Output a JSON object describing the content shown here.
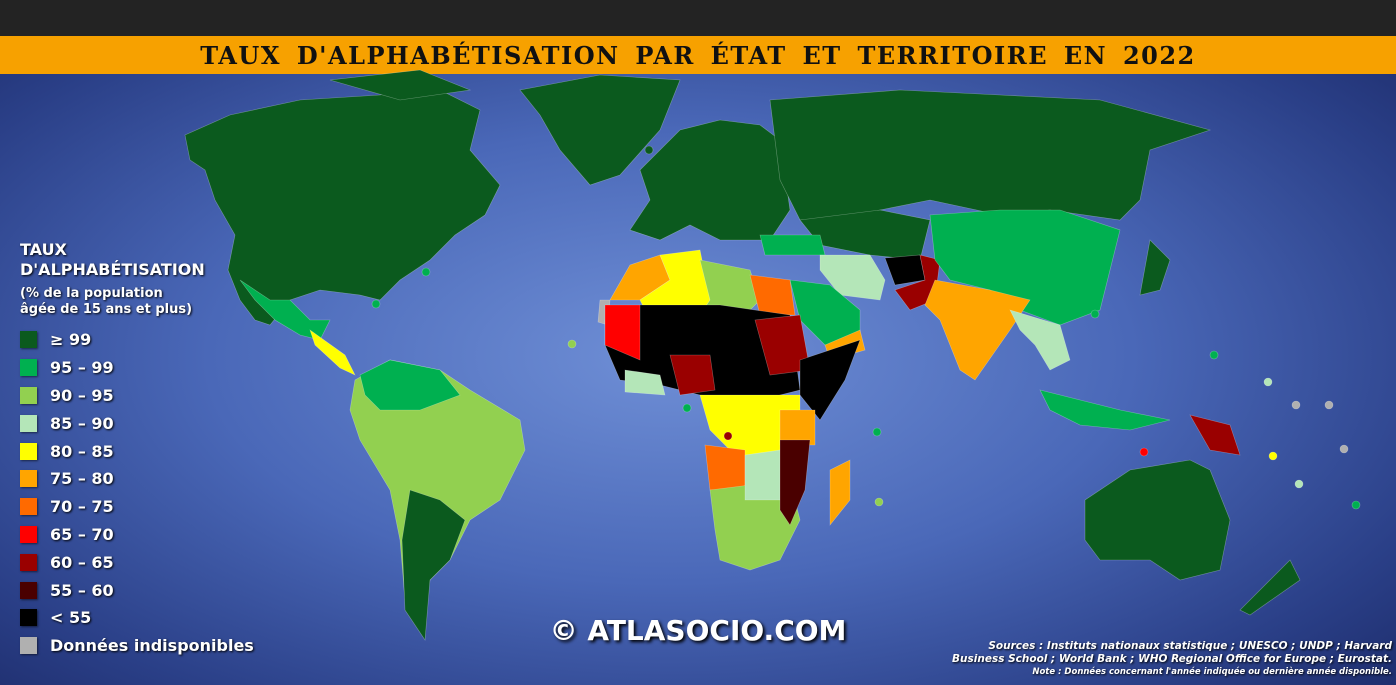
{
  "header": {
    "title": "TAUX D'ALPHABÉTISATION PAR ÉTAT ET TERRITOIRE EN 2022"
  },
  "legend": {
    "title_line1": "TAUX",
    "title_line2": "D'ALPHABÉTISATION",
    "subtitle_line1": "(% de la population",
    "subtitle_line2": "âgée de 15 ans et plus)",
    "items": [
      {
        "label": "≥ 99",
        "color": "#0b5a1e"
      },
      {
        "label": "95 – 99",
        "color": "#00b050"
      },
      {
        "label": "90 – 95",
        "color": "#92d050"
      },
      {
        "label": "85 – 90",
        "color": "#b4e6b8"
      },
      {
        "label": "80 – 85",
        "color": "#ffff00"
      },
      {
        "label": "75 – 80",
        "color": "#ffa500"
      },
      {
        "label": "70 – 75",
        "color": "#ff6a00"
      },
      {
        "label": "65 – 70",
        "color": "#ff0000"
      },
      {
        "label": "60 – 65",
        "color": "#9a0000"
      },
      {
        "label": "55 – 60",
        "color": "#4a0000"
      },
      {
        "label": "< 55",
        "color": "#000000"
      },
      {
        "label": "Données indisponibles",
        "color": "#b0b0b0"
      }
    ]
  },
  "watermark": "© ATLASOCIO.COM",
  "sources": {
    "line1": "Sources : Instituts nationaux statistique ; UNESCO ; UNDP ; Harvard",
    "line2": "Business School ; World Bank ; WHO Regional Office for Europe ; Eurostat.",
    "note": "Note : Données concernant l'année indiquée ou dernière année disponible."
  }
}
